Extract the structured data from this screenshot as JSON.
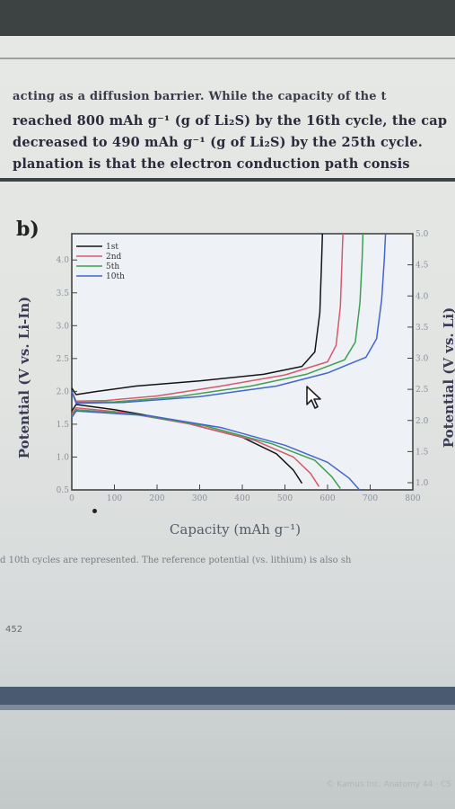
{
  "text": {
    "line0": "acting as a diffusion barrier. While the capacity of the t",
    "line1": "reached 800 mAh g⁻¹ (g of Li₂S) by the 16th cycle, the cap",
    "line2": "decreased to 490 mAh g⁻¹ (g of Li₂S) by the 25th cycle.",
    "line3": "planation is that the electron conduction path consis",
    "panel_label": "b)",
    "caption": "d 10th cycles are represented. The reference potential (vs. lithium) is also sh",
    "page_number": "452",
    "footer": "© Kamus Inc. Anatomy 44 · CS"
  },
  "colors": {
    "1st": "#141414",
    "2nd": "#d65a6a",
    "5th": "#3fa052",
    "10th": "#4466cc"
  },
  "icons": {
    "cursor": "mouse-pointer-icon"
  },
  "chart_data": {
    "type": "line",
    "title": "",
    "xlabel": "Capacity (mAh g⁻¹)",
    "ylabel": "Potential (V vs. Li-In)",
    "ylabel_right": "Potential (V vs. Li)",
    "xlim": [
      0,
      800
    ],
    "ylim": [
      0.5,
      4.4
    ],
    "xticks": [
      0,
      100,
      200,
      300,
      400,
      500,
      600,
      700,
      800
    ],
    "yticks": [
      0.5,
      1.0,
      1.5,
      2.0,
      2.5,
      3.0,
      3.5,
      4.0
    ],
    "yticks_right": [
      1.0,
      1.5,
      2.0,
      2.5,
      3.0,
      3.5,
      4.0,
      4.5,
      5.0
    ],
    "legend": "top-left",
    "grid": false,
    "series": [
      {
        "name": "1st",
        "segments": [
          {
            "x": [
              0,
              10,
              60,
              150,
              300,
              450,
              540,
              570,
              582,
              586,
              588
            ],
            "y": [
              2.05,
              1.95,
              2.0,
              2.08,
              2.16,
              2.26,
              2.38,
              2.6,
              3.2,
              4.0,
              4.4
            ]
          },
          {
            "x": [
              0,
              10,
              100,
              250,
              400,
              480,
              520,
              540
            ],
            "y": [
              1.7,
              1.8,
              1.72,
              1.55,
              1.3,
              1.05,
              0.8,
              0.6
            ]
          }
        ]
      },
      {
        "name": "2nd",
        "segments": [
          {
            "x": [
              0,
              10,
              80,
              200,
              350,
              500,
              600,
              620,
              630,
              634,
              636
            ],
            "y": [
              2.0,
              1.85,
              1.86,
              1.93,
              2.08,
              2.25,
              2.45,
              2.7,
              3.3,
              4.0,
              4.4
            ]
          },
          {
            "x": [
              0,
              10,
              120,
              280,
              430,
              520,
              560,
              580
            ],
            "y": [
              1.65,
              1.75,
              1.68,
              1.5,
              1.25,
              1.0,
              0.75,
              0.55
            ]
          }
        ]
      },
      {
        "name": "5th",
        "segments": [
          {
            "x": [
              0,
              10,
              100,
              250,
              420,
              550,
              640,
              665,
              676,
              681,
              683
            ],
            "y": [
              2.0,
              1.83,
              1.84,
              1.92,
              2.08,
              2.26,
              2.48,
              2.75,
              3.35,
              4.0,
              4.4
            ]
          },
          {
            "x": [
              0,
              10,
              150,
              310,
              470,
              570,
              610,
              630
            ],
            "y": [
              1.62,
              1.72,
              1.65,
              1.48,
              1.2,
              0.95,
              0.7,
              0.52
            ]
          }
        ]
      },
      {
        "name": "10th",
        "segments": [
          {
            "x": [
              0,
              10,
              120,
              300,
              480,
              600,
              690,
              715,
              727,
              733,
              736
            ],
            "y": [
              2.0,
              1.82,
              1.83,
              1.92,
              2.08,
              2.28,
              2.52,
              2.8,
              3.4,
              4.0,
              4.4
            ]
          },
          {
            "x": [
              0,
              10,
              180,
              350,
              500,
              600,
              650,
              675
            ],
            "y": [
              1.6,
              1.7,
              1.63,
              1.45,
              1.18,
              0.92,
              0.68,
              0.5
            ]
          }
        ]
      }
    ]
  }
}
